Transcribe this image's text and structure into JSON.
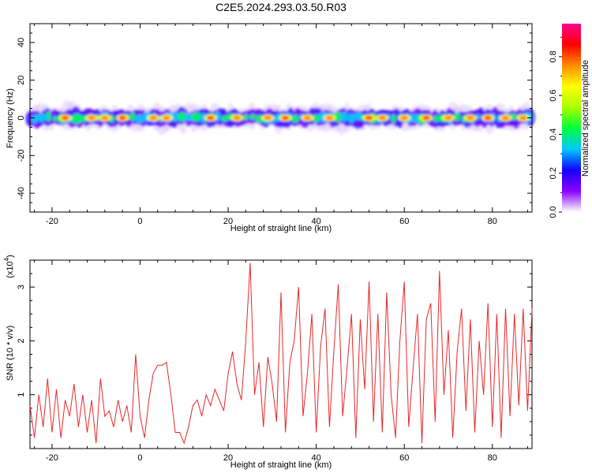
{
  "title": "C2E5.2024.293.03.50.R03",
  "chart_data": [
    {
      "type": "heatmap",
      "xlabel": "Height of straight line (km)",
      "ylabel": "Frequency (Hz)",
      "xlim": [
        -25,
        89
      ],
      "ylim": [
        -50,
        50
      ],
      "xticks": [
        -20,
        0,
        20,
        40,
        60,
        80
      ],
      "yticks": [
        -40,
        -20,
        0,
        20,
        40
      ],
      "colorbar": {
        "label": "Normalized spectral amplitude",
        "range": [
          0,
          0.97
        ],
        "ticks": [
          0.0,
          0.2,
          0.4,
          0.6,
          0.8
        ],
        "colors": [
          "#ffffff",
          "#8a00ff",
          "#1400ff",
          "#00c8ff",
          "#00ff3c",
          "#a8ff00",
          "#ffff00",
          "#ff8c00",
          "#ff0000",
          "#ff0090"
        ]
      },
      "band": {
        "center_hz": 0,
        "halfwidth_hz": 4,
        "peak_amplitude_x_km": [
          -17,
          -11,
          -8,
          -4,
          3,
          6,
          16,
          22,
          29,
          33,
          38,
          43,
          52,
          55,
          60,
          65,
          70,
          75,
          79,
          83,
          87
        ]
      }
    },
    {
      "type": "line",
      "xlabel": "Height of straight line (km)",
      "ylabel": "SNR (10 * v/v)",
      "y_multiplier": "(x10^4)",
      "y_multiplier_base": "(x10",
      "y_multiplier_exp": "4",
      "xlim": [
        -25,
        89
      ],
      "ylim": [
        0,
        3.5
      ],
      "xticks": [
        -20,
        0,
        20,
        40,
        60,
        80
      ],
      "yticks": [
        1,
        2,
        3
      ],
      "series": [
        {
          "color": "#e8272a",
          "x": [
            -25,
            -24,
            -23,
            -22,
            -21,
            -20,
            -19,
            -18,
            -17,
            -16,
            -15,
            -14,
            -13,
            -12,
            -11,
            -10,
            -9,
            -8,
            -7,
            -6,
            -5,
            -4,
            -3,
            -2,
            -1,
            0,
            1,
            2,
            3,
            4,
            5,
            6,
            7,
            8,
            9,
            10,
            11,
            12,
            13,
            14,
            15,
            16,
            17,
            18,
            19,
            20,
            21,
            22,
            23,
            24,
            25,
            26,
            27,
            28,
            29,
            30,
            31,
            32,
            33,
            34,
            35,
            36,
            37,
            38,
            39,
            40,
            41,
            42,
            43,
            44,
            45,
            46,
            47,
            48,
            49,
            50,
            51,
            52,
            53,
            54,
            55,
            56,
            57,
            58,
            59,
            60,
            61,
            62,
            63,
            64,
            65,
            66,
            67,
            68,
            69,
            70,
            71,
            72,
            73,
            74,
            75,
            76,
            77,
            78,
            79,
            80,
            81,
            82,
            83,
            84,
            85,
            86,
            87,
            88,
            89
          ],
          "y": [
            0.8,
            0.2,
            1.0,
            0.4,
            1.3,
            0.3,
            1.1,
            0.2,
            0.9,
            0.6,
            1.2,
            0.4,
            1.0,
            0.3,
            0.9,
            0.1,
            1.3,
            0.6,
            0.7,
            0.4,
            0.9,
            0.5,
            0.8,
            0.3,
            1.75,
            0.6,
            0.2,
            0.9,
            1.4,
            1.55,
            1.55,
            1.6,
            1.0,
            0.3,
            0.3,
            0.1,
            0.4,
            0.8,
            0.9,
            0.6,
            1.0,
            0.8,
            1.1,
            0.9,
            0.7,
            1.4,
            1.8,
            1.2,
            0.9,
            2.0,
            3.45,
            1.0,
            1.6,
            0.4,
            1.7,
            1.2,
            0.5,
            2.9,
            0.3,
            1.6,
            2.0,
            3.0,
            0.6,
            1.4,
            2.5,
            0.3,
            1.9,
            2.6,
            0.4,
            1.8,
            3.05,
            0.6,
            1.5,
            2.5,
            0.2,
            2.4,
            1.1,
            3.1,
            0.5,
            2.5,
            0.3,
            2.9,
            1.0,
            0.2,
            2.0,
            3.1,
            0.4,
            1.5,
            2.5,
            0.1,
            2.4,
            2.7,
            0.5,
            3.3,
            1.0,
            2.2,
            0.2,
            1.8,
            2.6,
            0.7,
            2.4,
            0.3,
            2.0,
            1.0,
            2.7,
            0.4,
            2.5,
            0.2,
            2.6,
            0.6,
            2.5,
            0.8,
            2.6,
            0.7,
            2.6
          ]
        }
      ]
    }
  ]
}
